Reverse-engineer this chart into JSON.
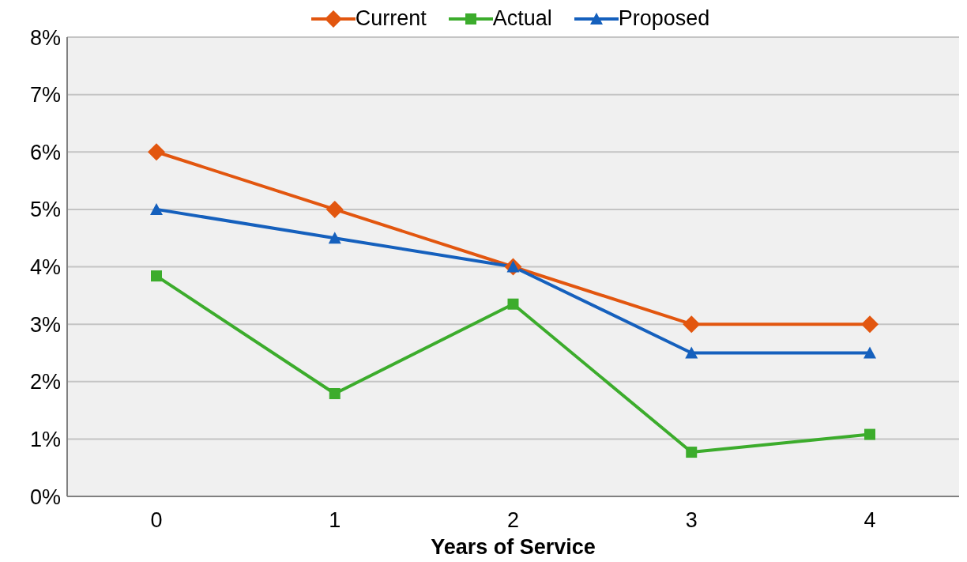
{
  "chart_data": {
    "type": "line",
    "xlabel": "Years of Service",
    "categories": [
      "0",
      "1",
      "2",
      "3",
      "4"
    ],
    "series": [
      {
        "name": "Current",
        "color": "#e2560f",
        "marker": "diamond",
        "values": [
          6,
          5,
          4,
          3,
          3
        ]
      },
      {
        "name": "Actual",
        "color": "#3cac2c",
        "marker": "square",
        "values": [
          3.84,
          1.79,
          3.35,
          0.77,
          1.08
        ]
      },
      {
        "name": "Proposed",
        "color": "#1560bd",
        "marker": "triangle",
        "values": [
          5,
          4.5,
          4,
          2.5,
          2.5
        ]
      }
    ],
    "ylim": [
      0,
      8
    ],
    "yticks": [
      {
        "value": 0,
        "label": "0%"
      },
      {
        "value": 1,
        "label": "1%"
      },
      {
        "value": 2,
        "label": "2%"
      },
      {
        "value": 3,
        "label": "3%"
      },
      {
        "value": 4,
        "label": "4%"
      },
      {
        "value": 5,
        "label": "5%"
      },
      {
        "value": 6,
        "label": "6%"
      },
      {
        "value": 7,
        "label": "7%"
      },
      {
        "value": 8,
        "label": "8%"
      }
    ],
    "grid": "y",
    "legend": "top"
  }
}
